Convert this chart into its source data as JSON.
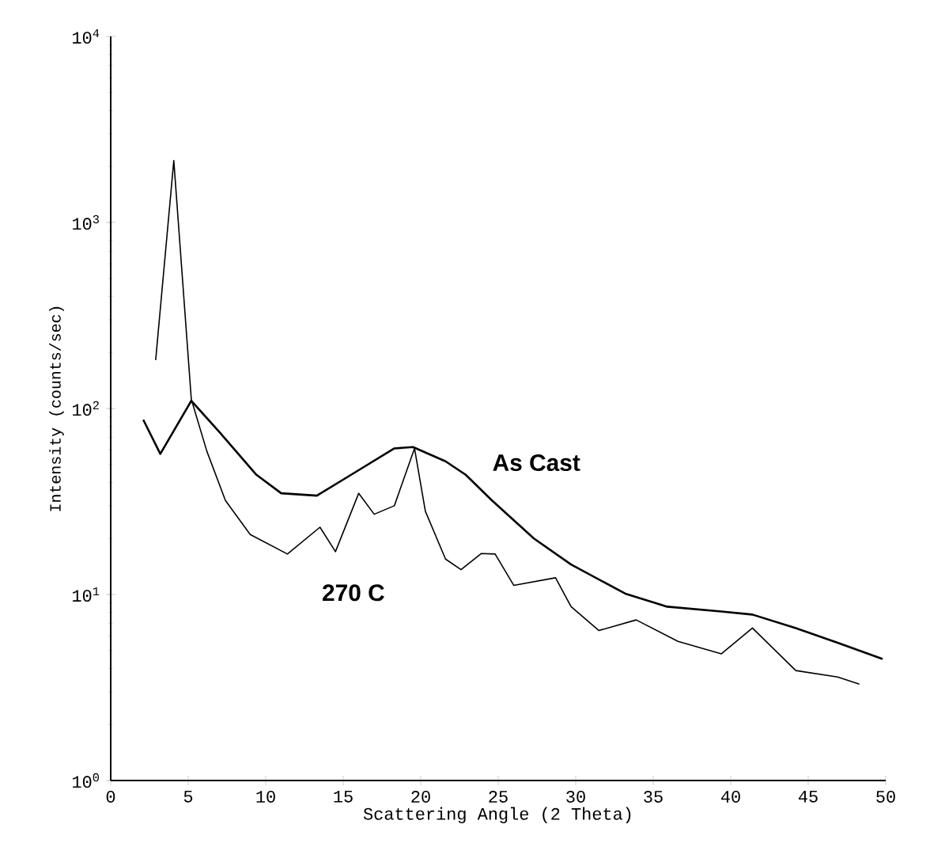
{
  "chart_data": {
    "type": "line",
    "xlabel": "Scattering Angle (2 Theta)",
    "ylabel": "Intensity (counts/sec)",
    "log": "y",
    "xlim": [
      0,
      50
    ],
    "ylim": [
      1,
      10000
    ],
    "xticks": [
      0,
      5,
      10,
      15,
      20,
      25,
      30,
      35,
      40,
      45,
      50
    ],
    "yticks": [
      {
        "value": 1,
        "label": "10$^{0}$"
      },
      {
        "value": 10,
        "label": "10$^{1}$"
      },
      {
        "value": 100,
        "label": "10$^{2}$"
      },
      {
        "value": 1000,
        "label": "10$^{3}$"
      },
      {
        "value": 10000,
        "label": "10$^{4}$"
      }
    ],
    "grid": false,
    "legend": false,
    "marker": "none",
    "line_style": "solid",
    "series": [
      {
        "name": "As Cast",
        "color": "#000000",
        "x": [
          2.1,
          3.2,
          5.2,
          7.05,
          9.4,
          11.0,
          13.3,
          15.7,
          18.3,
          19.5,
          21.6,
          22.9,
          24.6,
          27.3,
          29.7,
          33.2,
          35.9,
          39.4,
          41.4,
          44.2,
          46.9,
          49.8
        ],
        "values": [
          87,
          57,
          110,
          74,
          44,
          35,
          34,
          45,
          61,
          62,
          52,
          44,
          32,
          20,
          14.5,
          10.1,
          8.6,
          8.1,
          7.8,
          6.6,
          5.5,
          4.5
        ]
      },
      {
        "name": "270 C",
        "color": "#000000",
        "x": [
          2.9,
          4.07,
          5.2,
          6.2,
          7.4,
          9.0,
          11.4,
          13.5,
          14.5,
          16.0,
          17.0,
          18.3,
          19.6,
          20.3,
          21.6,
          22.6,
          23.9,
          24.8,
          26.0,
          28.7,
          29.7,
          31.5,
          33.9,
          36.6,
          39.4,
          41.4,
          44.2,
          46.9,
          48.3
        ],
        "values": [
          182,
          2150,
          112,
          59,
          32,
          21,
          16.5,
          23,
          17,
          35,
          27,
          30,
          61,
          28,
          15.5,
          13.6,
          16.6,
          16.5,
          11.2,
          12.3,
          8.6,
          6.4,
          7.3,
          5.6,
          4.8,
          6.6,
          3.9,
          3.6,
          3.3
        ]
      }
    ]
  }
}
